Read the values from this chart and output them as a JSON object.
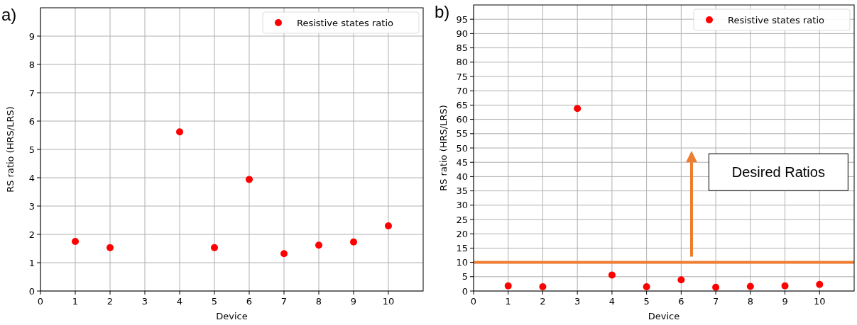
{
  "chart_data": [
    {
      "type": "scatter",
      "title": "a)",
      "xlabel": "Device",
      "ylabel": "RS ratio (HRS/LRS)",
      "x": [
        1,
        2,
        4,
        5,
        6,
        7,
        8,
        9,
        10
      ],
      "series": [
        {
          "name": "Resistive states ratio",
          "color": "#ff0000",
          "values": [
            1.75,
            1.53,
            5.62,
            1.53,
            3.94,
            1.32,
            1.62,
            1.73,
            2.3
          ]
        }
      ],
      "xlim": [
        0,
        11
      ],
      "xticks": [
        0,
        1,
        2,
        3,
        4,
        5,
        6,
        7,
        8,
        9,
        10
      ],
      "ylim": [
        0,
        10
      ],
      "yticks": [
        0,
        1,
        2,
        3,
        4,
        5,
        6,
        7,
        8,
        9
      ],
      "grid": true,
      "legend": "top right",
      "marker": "circle"
    },
    {
      "type": "scatter",
      "title": "b)",
      "xlabel": "Device",
      "ylabel": "RS ratio (HRS/LRS)",
      "x": [
        1,
        2,
        3,
        4,
        5,
        6,
        7,
        8,
        9,
        10
      ],
      "series": [
        {
          "name": "Resistive states ratio",
          "color": "#ff0000",
          "values": [
            1.8,
            1.5,
            63.8,
            5.6,
            1.5,
            3.9,
            1.3,
            1.6,
            1.8,
            2.3
          ]
        }
      ],
      "xlim": [
        0,
        11
      ],
      "xticks": [
        0,
        1,
        2,
        3,
        4,
        5,
        6,
        7,
        8,
        9,
        10
      ],
      "ylim": [
        0,
        100
      ],
      "yticks": [
        0,
        5,
        10,
        15,
        20,
        25,
        30,
        35,
        40,
        45,
        50,
        55,
        60,
        65,
        70,
        75,
        80,
        85,
        90,
        95
      ],
      "ref_lines": [
        {
          "axis": "y",
          "value": 10,
          "color": "#ed7d31"
        }
      ],
      "annotations": [
        "Desired Ratios"
      ],
      "grid": true,
      "legend": "top right",
      "marker": "circle"
    }
  ]
}
